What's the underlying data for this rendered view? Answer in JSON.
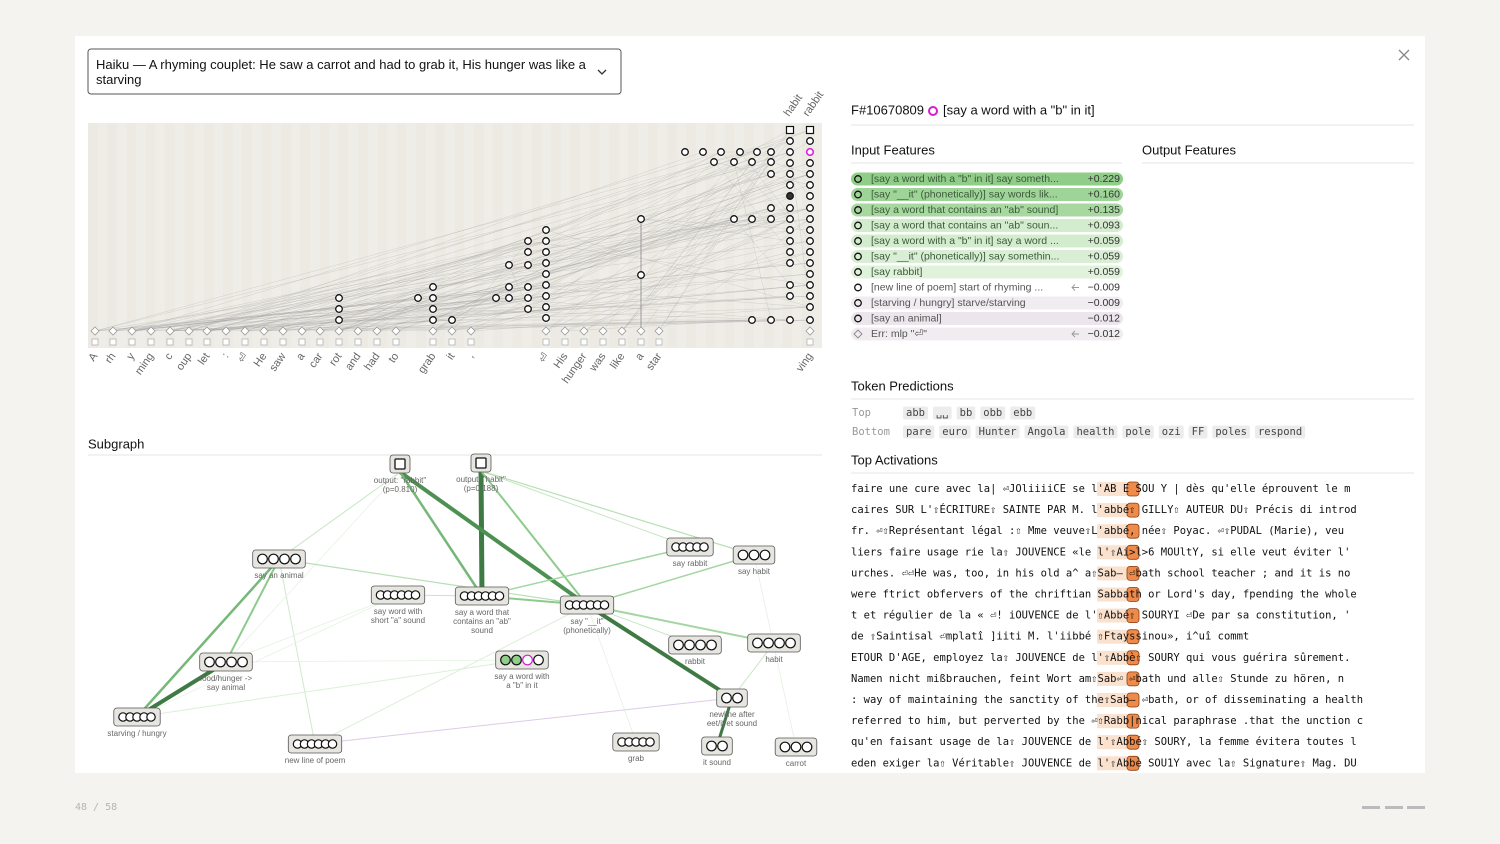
{
  "prompt_select": "Haiku — A rhyming couplet: He saw a carrot and had to grab it, His hunger was like a starving",
  "graph": {
    "tokens": [
      "A",
      "rh",
      "y",
      "ming",
      "c",
      "oup",
      "let",
      ":",
      "⏎",
      "He",
      "saw",
      "a",
      "car",
      "rot",
      "and",
      "had",
      "to",
      "grab",
      "it",
      ",",
      "⏎",
      "His",
      "hunger",
      "was",
      "like",
      "a",
      "star",
      "ving"
    ],
    "top_tokens": [
      "habit",
      "rabbit"
    ]
  },
  "subgraph": {
    "title": "Subgraph",
    "nodes": [
      {
        "label": [
          "output: \"rabbit\"",
          "(p=0.810)"
        ]
      },
      {
        "label": [
          "output: \"habit\"",
          "(p=0.188)"
        ]
      },
      {
        "label": [
          "say an animal"
        ]
      },
      {
        "label": [
          "say word with",
          "short \"a\" sound"
        ]
      },
      {
        "label": [
          "say a word that",
          "contains an \"ab\"",
          "sound"
        ]
      },
      {
        "label": [
          "say \"__it\"",
          "(phonetically)"
        ]
      },
      {
        "label": [
          "say rabbit"
        ]
      },
      {
        "label": [
          "say habit"
        ]
      },
      {
        "label": [
          "rabbit"
        ]
      },
      {
        "label": [
          "habit"
        ]
      },
      {
        "label": [
          "food/hunger ->",
          "say animal"
        ]
      },
      {
        "label": [
          "say a word with",
          "a \"b\" in it"
        ]
      },
      {
        "label": [
          "starving / hungry"
        ]
      },
      {
        "label": [
          "newline after",
          "eet/it/et sound"
        ]
      },
      {
        "label": [
          "new line of poem"
        ]
      },
      {
        "label": [
          "grab"
        ]
      },
      {
        "label": [
          "it sound"
        ]
      },
      {
        "label": [
          "carrot"
        ]
      }
    ]
  },
  "feature": {
    "id": "F#10670809",
    "label": "[say a word with a \"b\" in it]"
  },
  "input_features": {
    "title": "Input Features",
    "rows": [
      {
        "label": "[say a word with a \"b\" in it] say someth...",
        "value": "+0.229"
      },
      {
        "label": "[say \"__it\" (phonetically)] say words lik...",
        "value": "+0.160"
      },
      {
        "label": "[say a word that contains an \"ab\" sound]",
        "value": "+0.135"
      },
      {
        "label": "[say a word that contains an \"ab\" soun...",
        "value": "+0.093"
      },
      {
        "label": "[say a word with a \"b\" in it] say a word ...",
        "value": "+0.059"
      },
      {
        "label": "[say \"__it\" (phonetically)] say somethin...",
        "value": "+0.059"
      },
      {
        "label": "[say rabbit]",
        "value": "+0.059"
      },
      {
        "label": "[new line of poem] start of rhyming ...",
        "value": "−0.009"
      },
      {
        "label": "[starving / hungry] starve/starving",
        "value": "−0.009"
      },
      {
        "label": "[say an animal]",
        "value": "−0.012"
      },
      {
        "label": "Err: mlp \"⏎\"",
        "value": "−0.012"
      }
    ]
  },
  "output_features": {
    "title": "Output Features"
  },
  "token_predictions": {
    "title": "Token Predictions",
    "top_label": "Top",
    "top": [
      "abb",
      "␣␣",
      "bb",
      "obb",
      "ebb"
    ],
    "bottom_label": "Bottom",
    "bottom": [
      "pare",
      "euro",
      "Hunter",
      "Angola",
      "health",
      "pole",
      "ozi",
      "FF",
      "poles",
      "respond"
    ]
  },
  "top_activations": {
    "title": "Top Activations",
    "lines": [
      "faire une cure avec la| ⏎JOliiiiCE se l'AB E SOU Y | dès qu'elle éprouvent le m",
      "caires SUR L'⇧ÉCRITURE⇧ SAINTE PAR M. l'abbé⇧ GILLY⇧ AUTEUR DU⇧ Précis di introd",
      "fr. ⏎⇧Représentant légal :⇧ Mme veuve⇧L'abbé, née⇧ Poyac. ⏎⇧PUDAL (Marie), veu",
      "liers faire usage rie la⇧ JOUVENCE «le l'⇧Ai>l>6 MOUltY, si elle veut éviter l'",
      "urches. ⏎⏎He was, too, in his old a^ a⇧Sab– ⏎bath school teacher ; and it is no",
      "were ftrict obfervers of the chriftian Sabbath or Lord's day, fpending the whole",
      "t et régulier de la « ⏎! iOUVENCE de l'⇧Abbé⇧ SOURYI ⏎De par sa constitution, '",
      "  de  ⇧Saintisal ⏎mplatî  ]iiti M. l'iibbé  ⇧Ftayssinou»,  i^uî  commt",
      "ETOUR D'AGE, employez la⇧ JOUVENCE de l'⇧Abbè⇧ SOURY qui vous guérira sûrement.",
      "Namen nicht mißbrauchen, feint Wort am⇧Sab⏎ ⏎bath und alle⇧ Stunde zu hören, n",
      ": way of maintaining the sanctity of the⇧Sab– ⏎bath, or of disseminating a health",
      "referred to him, but perverted by the ⏎⇧Rabb|nical paraphrase .that the unction c",
      "qu'en faisant usage de la⇧ JOUVENCE de l'⇧Abbé⇧ SOURY, la femme évitera toutes l",
      "eden exiger la⇧ Véritable⇧ JOUVENCE de l'⇧Abbè SOU1Y avec la⇧ Signature⇧ Mag. DU"
    ]
  },
  "footer": {
    "page": "48 / 58"
  }
}
